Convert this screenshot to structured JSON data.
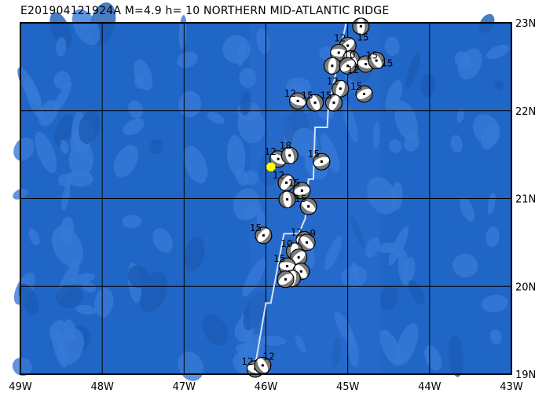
{
  "title": "E201904121924A M=4.9 h= 10 NORTHERN MID-ATLANTIC RIDGE",
  "map": {
    "lon_range": [
      -49,
      -43
    ],
    "lat_range": [
      19,
      23
    ],
    "lon_ticks": [
      -49,
      -48,
      -47,
      -46,
      -45,
      -44,
      -43
    ],
    "lat_ticks": [
      19,
      20,
      21,
      22,
      23
    ],
    "lon_tick_labels": [
      "49W",
      "48W",
      "47W",
      "46W",
      "45W",
      "44W",
      "43W"
    ],
    "lat_tick_labels": [
      "19N",
      "20N",
      "21N",
      "22N",
      "23N"
    ],
    "grid": true,
    "colors": {
      "ocean": "#1f66c6",
      "ocean_light": "#3779d6",
      "ocean_dark": "#1a5bb4",
      "grid": "#000000",
      "plate_boundary": "#d8e0f4",
      "mechanism_compression": "#7a7a7a",
      "mechanism_dilatation": "#ffffff",
      "epicenter": "#ffff00"
    },
    "epicenter": {
      "lon": -45.94,
      "lat": 21.36
    },
    "plate_boundary": [
      [
        -45.02,
        23.0
      ],
      [
        -45.24,
        22.01
      ],
      [
        -45.25,
        21.81
      ],
      [
        -45.4,
        21.81
      ],
      [
        -45.42,
        21.22
      ],
      [
        -45.48,
        21.22
      ],
      [
        -45.52,
        20.77
      ],
      [
        -45.6,
        20.6
      ],
      [
        -45.78,
        20.6
      ],
      [
        -45.94,
        19.81
      ],
      [
        -46.0,
        19.81
      ],
      [
        -46.15,
        19.0
      ]
    ],
    "mechanisms": [
      {
        "lon": -44.84,
        "lat": 22.96,
        "depth": "15"
      },
      {
        "lon": -45.0,
        "lat": 22.74,
        "depth": "12"
      },
      {
        "lon": -45.11,
        "lat": 22.66,
        "depth": "10"
      },
      {
        "lon": -44.96,
        "lat": 22.59,
        "depth": "12"
      },
      {
        "lon": -45.19,
        "lat": 22.51,
        "depth": ""
      },
      {
        "lon": -45.0,
        "lat": 22.51,
        "depth": ""
      },
      {
        "lon": -44.78,
        "lat": 22.53,
        "depth": "15"
      },
      {
        "lon": -44.65,
        "lat": 22.57,
        "depth": "15"
      },
      {
        "lon": -45.09,
        "lat": 22.25,
        "depth": "12"
      },
      {
        "lon": -44.8,
        "lat": 22.19,
        "depth": "15"
      },
      {
        "lon": -45.61,
        "lat": 22.11,
        "depth": "12"
      },
      {
        "lon": -45.4,
        "lat": 22.09,
        "depth": "15"
      },
      {
        "lon": -45.17,
        "lat": 22.09,
        "depth": "15"
      },
      {
        "lon": -45.32,
        "lat": 21.42,
        "depth": "15"
      },
      {
        "lon": -45.85,
        "lat": 21.45,
        "depth": "12"
      },
      {
        "lon": -45.71,
        "lat": 21.49,
        "depth": "18"
      },
      {
        "lon": -45.75,
        "lat": 21.18,
        "depth": "12"
      },
      {
        "lon": -45.56,
        "lat": 21.09,
        "depth": "15"
      },
      {
        "lon": -45.48,
        "lat": 20.91,
        "depth": "15"
      },
      {
        "lon": -45.74,
        "lat": 20.99,
        "depth": ""
      },
      {
        "lon": -46.03,
        "lat": 20.58,
        "depth": "15"
      },
      {
        "lon": -45.53,
        "lat": 20.53,
        "depth": "12"
      },
      {
        "lon": -45.5,
        "lat": 20.5,
        "depth": "9"
      },
      {
        "lon": -45.65,
        "lat": 20.4,
        "depth": "10"
      },
      {
        "lon": -45.6,
        "lat": 20.33,
        "depth": ""
      },
      {
        "lon": -45.74,
        "lat": 20.23,
        "depth": "15"
      },
      {
        "lon": -45.57,
        "lat": 20.17,
        "depth": ""
      },
      {
        "lon": -45.68,
        "lat": 20.09,
        "depth": ""
      },
      {
        "lon": -45.76,
        "lat": 20.08,
        "depth": ""
      },
      {
        "lon": -46.13,
        "lat": 19.06,
        "depth": "12"
      },
      {
        "lon": -46.04,
        "lat": 19.1,
        "depth": "12"
      }
    ]
  }
}
